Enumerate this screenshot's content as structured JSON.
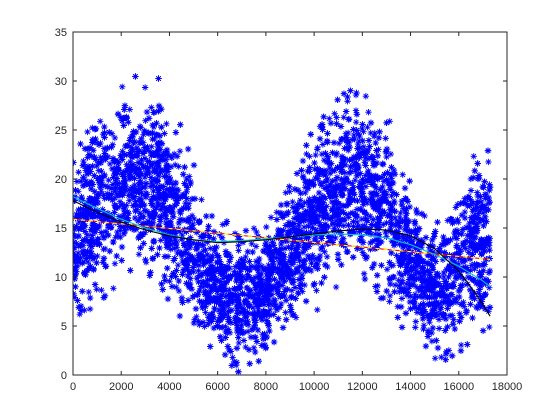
{
  "chart_data": {
    "type": "scatter",
    "title": "",
    "xlabel": "",
    "ylabel": "",
    "xlim": [
      0,
      18000
    ],
    "ylim": [
      0,
      35
    ],
    "xticks": [
      0,
      2000,
      4000,
      6000,
      8000,
      10000,
      12000,
      14000,
      16000,
      18000
    ],
    "yticks": [
      0,
      5,
      10,
      15,
      20,
      25,
      30,
      35
    ],
    "grid": false,
    "legend": "none",
    "scatter": {
      "marker": "asterisk",
      "color": "#0000ff",
      "x_range": [
        0,
        17300
      ],
      "upper_envelope": [
        [
          0,
          22
        ],
        [
          500,
          25
        ],
        [
          1000,
          27
        ],
        [
          1500,
          28.5
        ],
        [
          2000,
          29.5
        ],
        [
          2500,
          31
        ],
        [
          3000,
          30
        ],
        [
          3500,
          30.5
        ],
        [
          4000,
          28
        ],
        [
          4500,
          26
        ],
        [
          5000,
          22
        ],
        [
          5500,
          18
        ],
        [
          6000,
          15.5
        ],
        [
          6500,
          17
        ],
        [
          7000,
          14.5
        ],
        [
          7500,
          16
        ],
        [
          8000,
          16
        ],
        [
          8500,
          18
        ],
        [
          9000,
          20
        ],
        [
          9500,
          23
        ],
        [
          10000,
          26
        ],
        [
          10500,
          28
        ],
        [
          11000,
          29
        ],
        [
          11500,
          31.5
        ],
        [
          12000,
          30
        ],
        [
          12500,
          29
        ],
        [
          13000,
          27
        ],
        [
          13500,
          24
        ],
        [
          14000,
          20
        ],
        [
          14500,
          17
        ],
        [
          15000,
          16
        ],
        [
          15500,
          17
        ],
        [
          16000,
          20
        ],
        [
          16500,
          22
        ],
        [
          17000,
          25
        ],
        [
          17300,
          26
        ]
      ],
      "lower_envelope": [
        [
          0,
          5
        ],
        [
          500,
          6
        ],
        [
          1000,
          7
        ],
        [
          1500,
          8
        ],
        [
          2000,
          9
        ],
        [
          2500,
          10
        ],
        [
          3000,
          10
        ],
        [
          3500,
          9
        ],
        [
          4000,
          7
        ],
        [
          4500,
          5
        ],
        [
          5000,
          3
        ],
        [
          5500,
          2
        ],
        [
          6000,
          1
        ],
        [
          6500,
          0.5
        ],
        [
          7000,
          0.2
        ],
        [
          7500,
          1
        ],
        [
          8000,
          2
        ],
        [
          8500,
          3
        ],
        [
          9000,
          4
        ],
        [
          9500,
          5
        ],
        [
          10000,
          6
        ],
        [
          10500,
          8
        ],
        [
          11000,
          9
        ],
        [
          11500,
          10
        ],
        [
          12000,
          9
        ],
        [
          12500,
          8
        ],
        [
          13000,
          7
        ],
        [
          13500,
          5
        ],
        [
          14000,
          4
        ],
        [
          14500,
          3
        ],
        [
          15000,
          1
        ],
        [
          15500,
          1
        ],
        [
          16000,
          2
        ],
        [
          16500,
          3
        ],
        [
          17000,
          3
        ],
        [
          17300,
          5
        ]
      ]
    },
    "series": [
      {
        "type": "line",
        "color": "#ff0000",
        "x": [
          0,
          17300
        ],
        "y": [
          15.9,
          11.8
        ]
      },
      {
        "type": "line",
        "color": "#ffff00",
        "style": "dashed",
        "x": [
          0,
          17300
        ],
        "y": [
          15.9,
          11.8
        ]
      },
      {
        "type": "line",
        "color": "#00c8c8",
        "x": [
          0,
          1000,
          2000,
          3000,
          4000,
          5000,
          6000,
          7000,
          8000,
          9000,
          10000,
          11000,
          12000,
          13000,
          14000,
          15000,
          16000,
          17000,
          17300
        ],
        "y": [
          18.2,
          17.0,
          15.9,
          15.0,
          14.3,
          13.8,
          13.6,
          13.7,
          13.9,
          14.1,
          14.3,
          14.4,
          14.3,
          14.0,
          13.3,
          12.3,
          11.1,
          9.6,
          9.0
        ]
      },
      {
        "type": "line",
        "color": "#000000",
        "x": [
          0,
          1000,
          2000,
          3000,
          4000,
          5000,
          6000,
          7000,
          8000,
          9000,
          10000,
          11000,
          12000,
          13000,
          14000,
          15000,
          16000,
          16500,
          17000,
          17300
        ],
        "y": [
          17.8,
          16.6,
          15.6,
          14.8,
          14.2,
          13.8,
          13.5,
          13.6,
          13.8,
          14.1,
          14.4,
          14.7,
          14.9,
          14.8,
          14.2,
          12.9,
          10.6,
          9.0,
          7.2,
          6.0
        ]
      }
    ]
  }
}
